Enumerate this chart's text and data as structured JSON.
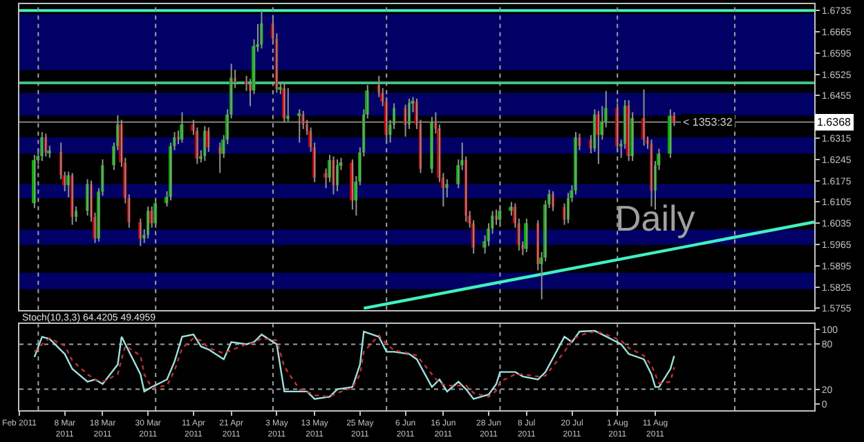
{
  "chart_data": [
    {
      "type": "candlestick",
      "tick_labels": "y",
      "x": [
        "2011-02-28",
        "2011-03-01",
        "2011-03-02",
        "2011-03-03",
        "2011-03-04",
        "2011-03-07",
        "2011-03-08",
        "2011-03-09",
        "2011-03-10",
        "2011-03-11",
        "2011-03-14",
        "2011-03-15",
        "2011-03-16",
        "2011-03-17",
        "2011-03-18",
        "2011-03-21",
        "2011-03-22",
        "2011-03-23",
        "2011-03-24",
        "2011-03-25",
        "2011-03-28",
        "2011-03-29",
        "2011-03-30",
        "2011-03-31",
        "2011-04-01",
        "2011-04-04",
        "2011-04-05",
        "2011-04-06",
        "2011-04-07",
        "2011-04-08",
        "2011-04-11",
        "2011-04-12",
        "2011-04-13",
        "2011-04-14",
        "2011-04-15",
        "2011-04-18",
        "2011-04-19",
        "2011-04-20",
        "2011-04-21",
        "2011-04-22",
        "2011-04-25",
        "2011-04-26",
        "2011-04-27",
        "2011-04-28",
        "2011-04-29",
        "2011-05-02",
        "2011-05-03",
        "2011-05-04",
        "2011-05-05",
        "2011-05-06",
        "2011-05-09",
        "2011-05-10",
        "2011-05-11",
        "2011-05-12",
        "2011-05-13",
        "2011-05-16",
        "2011-05-17",
        "2011-05-18",
        "2011-05-19",
        "2011-05-20",
        "2011-05-23",
        "2011-05-24",
        "2011-05-25",
        "2011-05-26",
        "2011-05-27",
        "2011-05-30",
        "2011-05-31",
        "2011-06-01",
        "2011-06-02",
        "2011-06-03",
        "2011-06-06",
        "2011-06-07",
        "2011-06-08",
        "2011-06-09",
        "2011-06-10",
        "2011-06-13",
        "2011-06-14",
        "2011-06-15",
        "2011-06-16",
        "2011-06-17",
        "2011-06-20",
        "2011-06-21",
        "2011-06-22",
        "2011-06-23",
        "2011-06-24",
        "2011-06-27",
        "2011-06-28",
        "2011-06-29",
        "2011-06-30",
        "2011-07-01",
        "2011-07-04",
        "2011-07-05",
        "2011-07-06",
        "2011-07-07",
        "2011-07-08",
        "2011-07-11",
        "2011-07-12",
        "2011-07-13",
        "2011-07-14",
        "2011-07-15",
        "2011-07-18",
        "2011-07-19",
        "2011-07-20",
        "2011-07-21",
        "2011-07-22",
        "2011-07-25",
        "2011-07-26",
        "2011-07-27",
        "2011-07-28",
        "2011-07-29",
        "2011-08-01",
        "2011-08-02",
        "2011-08-03",
        "2011-08-04",
        "2011-08-05",
        "2011-08-08",
        "2011-08-09",
        "2011-08-10",
        "2011-08-11",
        "2011-08-12",
        "2011-08-15",
        "2011-08-16"
      ],
      "ohlc": [
        [
          1.6101,
          1.626,
          1.6085,
          1.6243
        ],
        [
          1.6243,
          1.628,
          1.623,
          1.6256
        ],
        [
          1.6256,
          1.6335,
          1.624,
          1.6318
        ],
        [
          1.6318,
          1.633,
          1.6255,
          1.6268
        ],
        [
          1.6268,
          1.629,
          1.625,
          1.627
        ],
        [
          1.627,
          1.63,
          1.618,
          1.6193
        ],
        [
          1.6193,
          1.6205,
          1.614,
          1.616
        ],
        [
          1.616,
          1.6205,
          1.612,
          1.6193
        ],
        [
          1.6193,
          1.62,
          1.603,
          1.6056
        ],
        [
          1.6056,
          1.609,
          1.604,
          1.6076
        ],
        [
          1.6076,
          1.618,
          1.606,
          1.6164
        ],
        [
          1.6164,
          1.6175,
          1.604,
          1.6056
        ],
        [
          1.6056,
          1.607,
          1.597,
          1.5985
        ],
        [
          1.5985,
          1.615,
          1.5975,
          1.6139
        ],
        [
          1.6139,
          1.6245,
          1.6125,
          1.6226
        ],
        [
          1.6226,
          1.63,
          1.621,
          1.6289
        ],
        [
          1.6289,
          1.639,
          1.6275,
          1.636
        ],
        [
          1.636,
          1.6375,
          1.622,
          1.6235
        ],
        [
          1.6235,
          1.625,
          1.61,
          1.6118
        ],
        [
          1.6118,
          1.613,
          1.602,
          1.6039
        ],
        [
          1.6039,
          1.605,
          1.596,
          1.5985
        ],
        [
          1.5985,
          1.6015,
          1.597,
          1.5997
        ],
        [
          1.5997,
          1.609,
          1.5985,
          1.6076
        ],
        [
          1.6076,
          1.609,
          1.602,
          1.6035
        ],
        [
          1.6035,
          1.6115,
          1.602,
          1.6101
        ],
        [
          1.6101,
          1.614,
          1.609,
          1.6122
        ],
        [
          1.6122,
          1.63,
          1.611,
          1.6289
        ],
        [
          1.6289,
          1.6335,
          1.6275,
          1.6318
        ],
        [
          1.6318,
          1.634,
          1.6295,
          1.631
        ],
        [
          1.631,
          1.64,
          1.63,
          1.636
        ],
        [
          1.636,
          1.6375,
          1.6325,
          1.6339
        ],
        [
          1.6339,
          1.635,
          1.623,
          1.6247
        ],
        [
          1.6247,
          1.6275,
          1.6235,
          1.6256
        ],
        [
          1.6256,
          1.6355,
          1.624,
          1.6339
        ],
        [
          1.6339,
          1.635,
          1.627,
          1.6285
        ],
        [
          1.6285,
          1.63,
          1.62,
          1.6264
        ],
        [
          1.6264,
          1.6325,
          1.625,
          1.631
        ],
        [
          1.631,
          1.641,
          1.6295,
          1.6393
        ],
        [
          1.6393,
          1.656,
          1.638,
          1.6514
        ],
        [
          1.6514,
          1.654,
          1.648,
          1.6497
        ],
        [
          1.6497,
          1.652,
          1.647,
          1.6493
        ],
        [
          1.6493,
          1.651,
          1.642,
          1.6472
        ],
        [
          1.6472,
          1.664,
          1.646,
          1.6618
        ],
        [
          1.6618,
          1.669,
          1.66,
          1.6623
        ],
        [
          1.6623,
          1.6735,
          1.661,
          1.6693
        ],
        [
          1.6693,
          1.672,
          1.663,
          1.6643
        ],
        [
          1.6643,
          1.666,
          1.6465,
          1.6477
        ],
        [
          1.6477,
          1.65,
          1.646,
          1.648
        ],
        [
          1.648,
          1.6495,
          1.6365,
          1.6381
        ],
        [
          1.6381,
          1.648,
          1.637,
          1.6389
        ],
        [
          1.6389,
          1.641,
          1.63,
          1.6393
        ],
        [
          1.6393,
          1.6405,
          1.6345,
          1.636
        ],
        [
          1.636,
          1.6375,
          1.6325,
          1.6339
        ],
        [
          1.6339,
          1.635,
          1.627,
          1.6285
        ],
        [
          1.6285,
          1.63,
          1.617,
          1.6185
        ],
        [
          1.62,
          1.6215,
          1.615,
          1.6185
        ],
        [
          1.6185,
          1.626,
          1.617,
          1.6243
        ],
        [
          1.6243,
          1.6255,
          1.613,
          1.616
        ],
        [
          1.616,
          1.6245,
          1.614,
          1.6226
        ],
        [
          1.6226,
          1.625,
          1.621,
          1.6235
        ],
        [
          1.6235,
          1.6245,
          1.608,
          1.611
        ],
        [
          1.611,
          1.619,
          1.606,
          1.6172
        ],
        [
          1.6172,
          1.6285,
          1.616,
          1.6268
        ],
        [
          1.6268,
          1.641,
          1.6255,
          1.6393
        ],
        [
          1.6393,
          1.649,
          1.638,
          1.6472
        ],
        [
          1.649,
          1.652,
          1.645,
          1.6464
        ],
        [
          1.6464,
          1.648,
          1.642,
          1.6435
        ],
        [
          1.6435,
          1.645,
          1.63,
          1.6326
        ],
        [
          1.6326,
          1.6375,
          1.63,
          1.636
        ],
        [
          1.636,
          1.643,
          1.6345,
          1.6414
        ],
        [
          1.6414,
          1.6425,
          1.632,
          1.636
        ],
        [
          1.636,
          1.6445,
          1.6345,
          1.6431
        ],
        [
          1.6431,
          1.645,
          1.64,
          1.6435
        ],
        [
          1.6435,
          1.6445,
          1.6345,
          1.636
        ],
        [
          1.636,
          1.6375,
          1.62,
          1.6214
        ],
        [
          1.6214,
          1.6385,
          1.62,
          1.6368
        ],
        [
          1.6368,
          1.64,
          1.633,
          1.6347
        ],
        [
          1.6347,
          1.636,
          1.617,
          1.6185
        ],
        [
          1.6185,
          1.62,
          1.609,
          1.6151
        ],
        [
          1.6151,
          1.618,
          1.612,
          1.6164
        ],
        [
          1.6164,
          1.6245,
          1.615,
          1.6226
        ],
        [
          1.6226,
          1.63,
          1.621,
          1.6243
        ],
        [
          1.6243,
          1.6255,
          1.604,
          1.606
        ],
        [
          1.606,
          1.6075,
          1.602,
          1.6035
        ],
        [
          1.6035,
          1.6045,
          1.5935,
          1.5955
        ],
        [
          1.5955,
          1.5995,
          1.5935,
          1.5976
        ],
        [
          1.5976,
          1.6035,
          1.596,
          1.6018
        ],
        [
          1.6018,
          1.6075,
          1.6,
          1.606
        ],
        [
          1.606,
          1.608,
          1.603,
          1.6047
        ],
        [
          1.6047,
          1.6095,
          1.6035,
          1.6076
        ],
        [
          1.6076,
          1.6105,
          1.606,
          1.6089
        ],
        [
          1.6089,
          1.61,
          1.602,
          1.6035
        ],
        [
          1.6035,
          1.605,
          1.5945,
          1.5964
        ],
        [
          1.5964,
          1.5975,
          1.593,
          1.5951
        ],
        [
          1.5951,
          1.605,
          1.594,
          1.6035
        ],
        [
          1.6035,
          1.6045,
          1.588,
          1.5901
        ],
        [
          1.5901,
          1.594,
          1.5784,
          1.5922
        ],
        [
          1.5922,
          1.611,
          1.591,
          1.6097
        ],
        [
          1.6097,
          1.6145,
          1.6085,
          1.6131
        ],
        [
          1.6131,
          1.614,
          1.6075,
          1.6089
        ],
        [
          1.6089,
          1.61,
          1.603,
          1.6047
        ],
        [
          1.6047,
          1.6135,
          1.6035,
          1.6118
        ],
        [
          1.6118,
          1.616,
          1.6105,
          1.6143
        ],
        [
          1.6143,
          1.6335,
          1.613,
          1.6318
        ],
        [
          1.6318,
          1.633,
          1.6275,
          1.6289
        ],
        [
          1.631,
          1.6325,
          1.6265,
          1.6281
        ],
        [
          1.6281,
          1.641,
          1.627,
          1.6393
        ],
        [
          1.6393,
          1.6405,
          1.623,
          1.6326
        ],
        [
          1.6326,
          1.642,
          1.631,
          1.6368
        ],
        [
          1.6368,
          1.647,
          1.635,
          1.6414
        ],
        [
          1.6414,
          1.643,
          1.627,
          1.6289
        ],
        [
          1.6289,
          1.631,
          1.625,
          1.6297
        ],
        [
          1.6297,
          1.644,
          1.628,
          1.6422
        ],
        [
          1.6422,
          1.644,
          1.624,
          1.6256
        ],
        [
          1.6256,
          1.64,
          1.624,
          1.6381
        ],
        [
          1.6381,
          1.6475,
          1.629,
          1.631
        ],
        [
          1.631,
          1.632,
          1.628,
          1.6297
        ],
        [
          1.6297,
          1.631,
          1.609,
          1.6143
        ],
        [
          1.6143,
          1.624,
          1.608,
          1.6226
        ],
        [
          1.6226,
          1.628,
          1.621,
          1.6264
        ],
        [
          1.6264,
          1.641,
          1.625,
          1.6389
        ],
        [
          1.6389,
          1.64,
          1.6355,
          1.6368
        ]
      ],
      "series": [
        {
          "type": "line",
          "color": "#40f0c0",
          "x": [
            "2011-05-26",
            "2011-09-22"
          ],
          "values": [
            1.5755,
            1.6039
          ]
        }
      ],
      "xlim": [
        "2011-02-24",
        "2011-09-22"
      ],
      "ylim": [
        1.575,
        1.6756
      ],
      "yticks": [
        1.5755,
        1.5825,
        1.5895,
        1.5965,
        1.6035,
        1.6105,
        1.6175,
        1.6245,
        1.6315,
        1.6455,
        1.6525,
        1.6595,
        1.6665,
        1.6735
      ],
      "bands": [
        {
          "axis": "y",
          "from": 1.6539,
          "to": 1.6723,
          "color": "#000066"
        },
        {
          "axis": "y",
          "from": 1.6389,
          "to": 1.6464,
          "color": "#000066"
        },
        {
          "axis": "y",
          "from": 1.6264,
          "to": 1.6318,
          "color": "#000066"
        },
        {
          "axis": "y",
          "from": 1.6118,
          "to": 1.6164,
          "color": "#000066"
        },
        {
          "axis": "y",
          "from": 1.5964,
          "to": 1.6014,
          "color": "#000066"
        },
        {
          "axis": "y",
          "from": 1.5818,
          "to": 1.5872,
          "color": "#000066"
        }
      ],
      "ref_lines": [
        {
          "axis": "y",
          "value": 1.6735,
          "color": "#40f0c0",
          "line_style": "solid"
        },
        {
          "axis": "y",
          "value": 1.6497,
          "color": "#40c080",
          "line_style": "solid"
        },
        {
          "axis": "y",
          "value": 1.6368,
          "label": "1.6368",
          "color": "#808080",
          "line_style": "solid"
        },
        {
          "axis": "x",
          "value": "2011-03-01",
          "color": "#a0a0a0",
          "line_style": "dotted"
        },
        {
          "axis": "x",
          "value": "2011-04-01",
          "color": "#a0a0a0",
          "line_style": "dotted"
        },
        {
          "axis": "x",
          "value": "2011-05-02",
          "color": "#a0a0a0",
          "line_style": "dotted"
        },
        {
          "axis": "x",
          "value": "2011-06-01",
          "color": "#a0a0a0",
          "line_style": "dotted"
        },
        {
          "axis": "x",
          "value": "2011-07-01",
          "color": "#a0a0a0",
          "line_style": "dotted"
        },
        {
          "axis": "x",
          "value": "2011-08-01",
          "color": "#a0a0a0",
          "line_style": "dotted"
        },
        {
          "axis": "x",
          "value": "2011-09-01",
          "color": "#a0a0a0",
          "line_style": "dotted"
        }
      ],
      "annotations": [
        "Daily",
        {
          "text": "< 1353:32",
          "x": "2011-08-16",
          "y": 1.6368
        }
      ]
    },
    {
      "type": "line",
      "series": [
        {
          "color": "#a0e0e0",
          "line_style": "solid",
          "x": [
            "2011-02-28",
            "2011-03-02",
            "2011-03-04",
            "2011-03-08",
            "2011-03-10",
            "2011-03-14",
            "2011-03-16",
            "2011-03-18",
            "2011-03-22",
            "2011-03-23",
            "2011-03-24",
            "2011-03-28",
            "2011-03-29",
            "2011-03-31",
            "2011-04-04",
            "2011-04-06",
            "2011-04-08",
            "2011-04-11",
            "2011-04-13",
            "2011-04-15",
            "2011-04-19",
            "2011-04-21",
            "2011-04-25",
            "2011-04-27",
            "2011-04-29",
            "2011-05-03",
            "2011-05-05",
            "2011-05-09",
            "2011-05-11",
            "2011-05-13",
            "2011-05-17",
            "2011-05-19",
            "2011-05-23",
            "2011-05-25",
            "2011-05-26",
            "2011-05-30",
            "2011-06-01",
            "2011-06-03",
            "2011-06-07",
            "2011-06-09",
            "2011-06-13",
            "2011-06-15",
            "2011-06-17",
            "2011-06-20",
            "2011-06-22",
            "2011-06-24",
            "2011-06-28",
            "2011-06-30",
            "2011-07-01",
            "2011-07-05",
            "2011-07-07",
            "2011-07-11",
            "2011-07-13",
            "2011-07-18",
            "2011-07-20",
            "2011-07-22",
            "2011-07-26",
            "2011-07-28",
            "2011-08-02",
            "2011-08-04",
            "2011-08-08",
            "2011-08-10",
            "2011-08-11",
            "2011-08-12",
            "2011-08-15",
            "2011-08-16"
          ],
          "values": [
            63,
            90,
            87,
            67,
            47,
            30,
            33,
            27,
            53,
            90,
            80,
            40,
            17,
            23,
            33,
            57,
            90,
            93,
            77,
            73,
            60,
            83,
            80,
            83,
            93,
            80,
            17,
            17,
            17,
            7,
            10,
            20,
            23,
            53,
            97,
            90,
            70,
            70,
            67,
            60,
            23,
            33,
            17,
            30,
            20,
            7,
            13,
            27,
            43,
            43,
            37,
            33,
            43,
            90,
            83,
            97,
            98,
            93,
            80,
            67,
            60,
            40,
            23,
            23,
            47,
            64.4205
          ]
        },
        {
          "color": "#c03030",
          "line_style": "dotted",
          "x": [
            "2011-02-28",
            "2011-03-02",
            "2011-03-04",
            "2011-03-08",
            "2011-03-10",
            "2011-03-14",
            "2011-03-16",
            "2011-03-18",
            "2011-03-22",
            "2011-03-23",
            "2011-03-24",
            "2011-03-28",
            "2011-03-29",
            "2011-03-31",
            "2011-04-04",
            "2011-04-06",
            "2011-04-08",
            "2011-04-11",
            "2011-04-13",
            "2011-04-15",
            "2011-04-19",
            "2011-04-21",
            "2011-04-25",
            "2011-04-27",
            "2011-04-29",
            "2011-05-03",
            "2011-05-05",
            "2011-05-09",
            "2011-05-11",
            "2011-05-13",
            "2011-05-17",
            "2011-05-19",
            "2011-05-23",
            "2011-05-25",
            "2011-05-26",
            "2011-05-30",
            "2011-06-01",
            "2011-06-03",
            "2011-06-07",
            "2011-06-09",
            "2011-06-13",
            "2011-06-15",
            "2011-06-17",
            "2011-06-20",
            "2011-06-22",
            "2011-06-24",
            "2011-06-28",
            "2011-06-30",
            "2011-07-01",
            "2011-07-05",
            "2011-07-07",
            "2011-07-11",
            "2011-07-13",
            "2011-07-18",
            "2011-07-20",
            "2011-07-22",
            "2011-07-26",
            "2011-07-28",
            "2011-08-02",
            "2011-08-04",
            "2011-08-08",
            "2011-08-10",
            "2011-08-11",
            "2011-08-12",
            "2011-08-15",
            "2011-08-16"
          ],
          "values": [
            70,
            80,
            88,
            78,
            58,
            40,
            33,
            30,
            40,
            60,
            78,
            65,
            40,
            22,
            25,
            45,
            75,
            88,
            85,
            75,
            68,
            72,
            80,
            82,
            88,
            85,
            50,
            20,
            17,
            12,
            10,
            15,
            22,
            40,
            70,
            92,
            80,
            72,
            68,
            65,
            40,
            28,
            25,
            25,
            25,
            15,
            10,
            18,
            30,
            40,
            40,
            37,
            38,
            70,
            85,
            92,
            97,
            95,
            85,
            75,
            65,
            52,
            40,
            28,
            30,
            49.4959
          ]
        }
      ],
      "xlim": [
        "2011-02-24",
        "2011-09-22"
      ],
      "xticks": [
        {
          "value": "2011-02-24",
          "label": "Feb 2011"
        },
        {
          "value": "2011-03-08",
          "label": "8 Mar 2011"
        },
        {
          "value": "2011-03-18",
          "label": "18 Mar 2011"
        },
        {
          "value": "2011-03-30",
          "label": "30 Mar 2011"
        },
        {
          "value": "2011-04-11",
          "label": "11 Apr 2011"
        },
        {
          "value": "2011-04-21",
          "label": "21 Apr 2011"
        },
        {
          "value": "2011-05-03",
          "label": "3 May 2011"
        },
        {
          "value": "2011-05-13",
          "label": "13 May 2011"
        },
        {
          "value": "2011-05-25",
          "label": "25 May 2011"
        },
        {
          "value": "2011-06-06",
          "label": "6 Jun 2011"
        },
        {
          "value": "2011-06-16",
          "label": "16 Jun 2011"
        },
        {
          "value": "2011-06-28",
          "label": "28 Jun 2011"
        },
        {
          "value": "2011-07-08",
          "label": "8 Jul 2011"
        },
        {
          "value": "2011-07-20",
          "label": "20 Jul 2011"
        },
        {
          "value": "2011-08-01",
          "label": "1 Aug 2011"
        },
        {
          "value": "2011-08-11",
          "label": "11 Aug 2011"
        }
      ],
      "ylim": [
        -8,
        107
      ],
      "yticks": [
        0,
        20,
        80,
        100
      ],
      "ref_lines": [
        {
          "axis": "y",
          "value": 20,
          "color": "#a0a0a0",
          "line_style": "dotted"
        },
        {
          "axis": "y",
          "value": 80,
          "color": "#a0a0a0",
          "line_style": "dotted"
        },
        {
          "axis": "x",
          "value": "2011-03-01",
          "color": "#a0a0a0",
          "line_style": "dotted"
        },
        {
          "axis": "x",
          "value": "2011-04-01",
          "color": "#a0a0a0",
          "line_style": "dotted"
        },
        {
          "axis": "x",
          "value": "2011-05-02",
          "color": "#a0a0a0",
          "line_style": "dotted"
        },
        {
          "axis": "x",
          "value": "2011-06-01",
          "color": "#a0a0a0",
          "line_style": "dotted"
        },
        {
          "axis": "x",
          "value": "2011-07-01",
          "color": "#a0a0a0",
          "line_style": "dotted"
        },
        {
          "axis": "x",
          "value": "2011-08-01",
          "color": "#a0a0a0",
          "line_style": "dotted"
        },
        {
          "axis": "x",
          "value": "2011-09-01",
          "color": "#a0a0a0",
          "line_style": "dotted"
        }
      ],
      "annotations": [
        "Stoch(10,3,3) 64.4205 49.4959"
      ]
    }
  ]
}
